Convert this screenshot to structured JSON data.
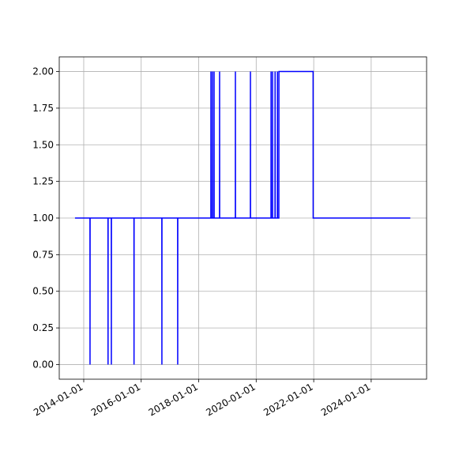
{
  "chart_data": {
    "type": "line",
    "color": "#0000ff",
    "grid": true,
    "x": [
      "2013-09-12",
      "2014-03-21",
      "2014-03-22",
      "2014-03-23",
      "2014-11-05",
      "2014-11-06",
      "2014-11-07",
      "2014-12-17",
      "2014-12-18",
      "2014-12-19",
      "2015-10-01",
      "2015-10-02",
      "2015-10-03",
      "2016-09-19",
      "2016-09-20",
      "2016-09-21",
      "2017-04-08",
      "2017-04-09",
      "2017-04-10",
      "2018-06-04",
      "2018-06-05",
      "2018-06-06",
      "2018-06-23",
      "2018-06-24",
      "2018-06-25",
      "2018-07-14",
      "2018-07-15",
      "2018-07-16",
      "2018-09-22",
      "2018-09-23",
      "2018-09-24",
      "2019-04-11",
      "2019-04-12",
      "2019-04-13",
      "2019-10-19",
      "2019-10-20",
      "2019-10-21",
      "2020-07-07",
      "2020-07-08",
      "2020-07-09",
      "2020-07-26",
      "2020-07-27",
      "2020-07-28",
      "2020-08-27",
      "2020-08-28",
      "2020-08-29",
      "2020-09-26",
      "2020-09-27",
      "2020-09-28",
      "2020-10-15",
      "2020-10-16",
      "2021-12-24",
      "2021-12-25",
      "2025-05-12"
    ],
    "values": [
      1,
      1,
      0,
      1,
      1,
      0,
      1,
      1,
      0,
      1,
      1,
      0,
      1,
      1,
      0,
      1,
      1,
      0,
      1,
      1,
      2,
      1,
      1,
      2,
      1,
      1,
      2,
      1,
      1,
      2,
      1,
      1,
      2,
      1,
      1,
      2,
      1,
      1,
      2,
      1,
      1,
      2,
      1,
      1,
      2,
      1,
      1,
      2,
      1,
      1,
      2,
      2,
      1,
      1
    ],
    "xlim": [
      "2013-02-24",
      "2025-12-05"
    ],
    "xticks": [
      "2014-01-01",
      "2016-01-01",
      "2018-01-01",
      "2020-01-01",
      "2022-01-01",
      "2024-01-01"
    ],
    "ylim": [
      -0.1,
      2.1
    ],
    "yticks": [
      {
        "value": 0,
        "label": "0.00"
      },
      {
        "value": 0.25,
        "label": "0.25"
      },
      {
        "value": 0.5,
        "label": "0.50"
      },
      {
        "value": 0.75,
        "label": "0.75"
      },
      {
        "value": 1,
        "label": "1.00"
      },
      {
        "value": 1.25,
        "label": "1.25"
      },
      {
        "value": 1.5,
        "label": "1.50"
      },
      {
        "value": 1.75,
        "label": "1.75"
      },
      {
        "value": 2,
        "label": "2.00"
      }
    ]
  }
}
